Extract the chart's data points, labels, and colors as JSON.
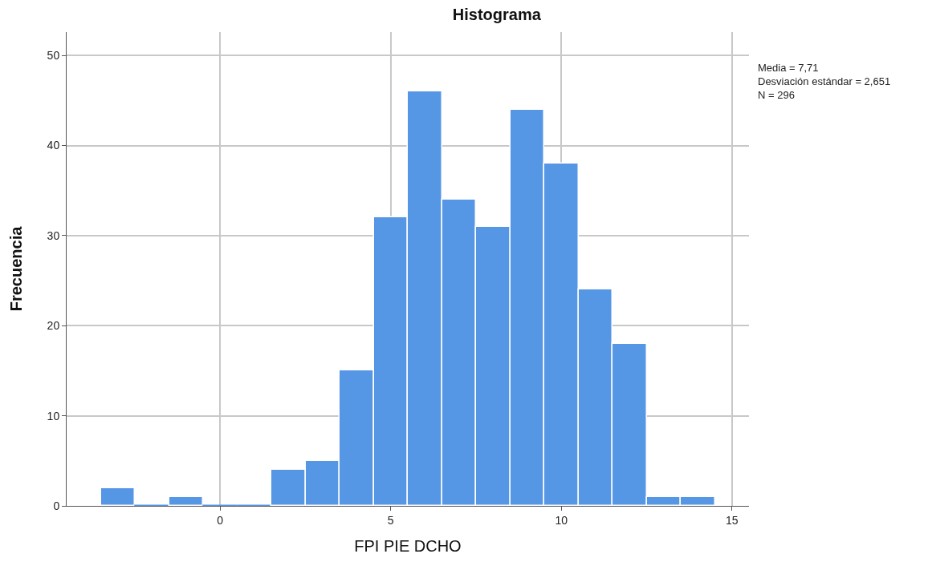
{
  "chart_data": {
    "type": "histogram",
    "title": "Histograma",
    "xlabel": "FPI PIE DCHO",
    "ylabel": "Frecuencia",
    "bins": [
      -3.5,
      -2.5,
      -1.5,
      -0.5,
      0.5,
      1.5,
      2.5,
      3.5,
      4.5,
      5.5,
      6.5,
      7.5,
      8.5,
      9.5,
      10.5,
      11.5,
      12.5,
      13.5,
      14.5
    ],
    "values": [
      2,
      0,
      1,
      0,
      0,
      4,
      5,
      15,
      32,
      46,
      34,
      31,
      44,
      38,
      24,
      18,
      1,
      1
    ],
    "color": "#5596e5",
    "xlim": [
      -4.5,
      15.5
    ],
    "xticks": [
      0,
      5,
      10,
      15
    ],
    "ylim": [
      0,
      52.6
    ],
    "yticks": [
      0,
      10,
      20,
      30,
      40,
      50
    ],
    "grid": true,
    "annotations": [
      "Media = 7,71",
      "Desviación estándar = 2,651",
      "N = 296"
    ]
  }
}
